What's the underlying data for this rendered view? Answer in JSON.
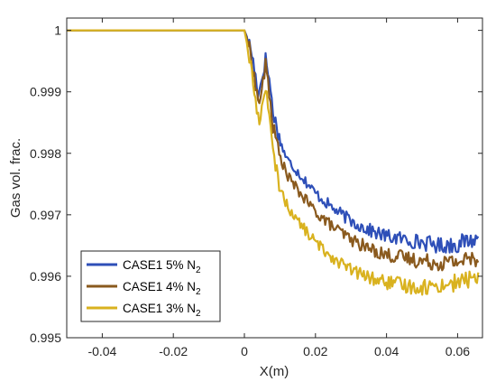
{
  "chart_data": {
    "type": "line",
    "xlabel": "X(m)",
    "ylabel": "Gas vol. frac.",
    "xlim": [
      -0.05,
      0.067
    ],
    "ylim": [
      0.995,
      1.0002
    ],
    "xticks": [
      -0.04,
      -0.02,
      0,
      0.02,
      0.04,
      0.06
    ],
    "xtick_labels": [
      "-0.04",
      "-0.02",
      "0",
      "0.02",
      "0.04",
      "0.06"
    ],
    "yticks": [
      0.995,
      0.996,
      0.997,
      0.998,
      0.999,
      1
    ],
    "ytick_labels": [
      "0.995",
      "0.996",
      "0.997",
      "0.998",
      "0.999",
      "1"
    ],
    "grid": false,
    "legend_position": "bottom-left",
    "series": [
      {
        "name": "CASE1 5% N2",
        "name_main": "CASE1 5% N",
        "name_sub": "2",
        "color": "#2E4FB8",
        "x": [
          -0.05,
          0.0,
          0.001,
          0.002,
          0.003,
          0.004,
          0.005,
          0.006,
          0.007,
          0.008,
          0.01,
          0.012,
          0.015,
          0.02,
          0.025,
          0.03,
          0.035,
          0.04,
          0.045,
          0.05,
          0.055,
          0.06,
          0.063,
          0.066
        ],
        "y": [
          1.0,
          1.0,
          0.99985,
          0.99965,
          0.9993,
          0.99895,
          0.99925,
          0.99955,
          0.9992,
          0.9987,
          0.9982,
          0.9979,
          0.9977,
          0.99735,
          0.9971,
          0.9969,
          0.99675,
          0.99665,
          0.9966,
          0.99655,
          0.9965,
          0.99652,
          0.99658,
          0.9966
        ]
      },
      {
        "name": "CASE1 4% N2",
        "name_main": "CASE1 4% N",
        "name_sub": "2",
        "color": "#8A5A1E",
        "x": [
          -0.05,
          0.0,
          0.001,
          0.002,
          0.003,
          0.004,
          0.005,
          0.006,
          0.007,
          0.008,
          0.01,
          0.012,
          0.015,
          0.02,
          0.025,
          0.03,
          0.035,
          0.04,
          0.045,
          0.05,
          0.055,
          0.06,
          0.063,
          0.066
        ],
        "y": [
          1.0,
          1.0,
          0.9998,
          0.99955,
          0.99915,
          0.9988,
          0.99905,
          0.99945,
          0.999,
          0.99845,
          0.99795,
          0.99765,
          0.9974,
          0.99705,
          0.9968,
          0.9966,
          0.99645,
          0.99635,
          0.9963,
          0.99625,
          0.99622,
          0.99624,
          0.99628,
          0.9963
        ]
      },
      {
        "name": "CASE1 3% N2",
        "name_main": "CASE1 3% N",
        "name_sub": "2",
        "color": "#D9B21F",
        "x": [
          -0.05,
          0.0,
          0.001,
          0.002,
          0.003,
          0.004,
          0.005,
          0.006,
          0.007,
          0.008,
          0.01,
          0.012,
          0.015,
          0.02,
          0.025,
          0.03,
          0.035,
          0.04,
          0.045,
          0.05,
          0.055,
          0.06,
          0.063,
          0.066
        ],
        "y": [
          1.0,
          1.0,
          0.9997,
          0.99935,
          0.9989,
          0.9985,
          0.99875,
          0.99915,
          0.9986,
          0.998,
          0.99745,
          0.99715,
          0.9969,
          0.99655,
          0.9963,
          0.9961,
          0.99598,
          0.9959,
          0.99585,
          0.99582,
          0.99585,
          0.9959,
          0.99595,
          0.99598
        ]
      }
    ]
  }
}
